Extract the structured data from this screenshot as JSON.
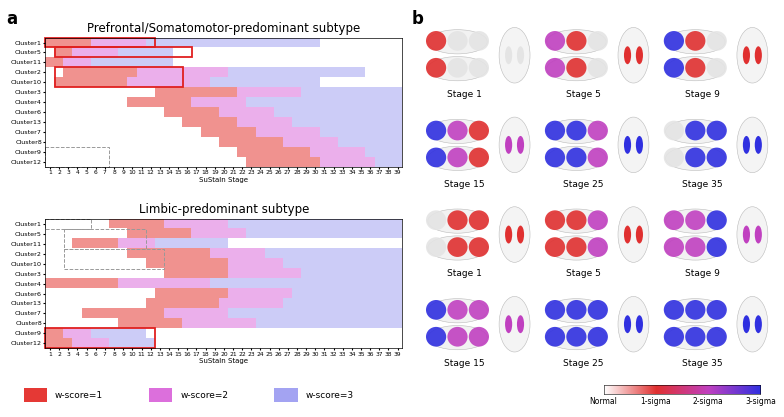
{
  "panel_labels": [
    "a",
    "b"
  ],
  "legend": [
    {
      "label": "w-score=1",
      "color": "#e53935"
    },
    {
      "label": "w-score=2",
      "color": "#dc6fdc"
    },
    {
      "label": "w-score=3",
      "color": "#a3a3f2"
    }
  ],
  "chart_data": [
    {
      "type": "heatmap",
      "title": "Prefrontal/Somatomotor-predominant subtype",
      "xlabel": "SuStaIn Stage",
      "rows": [
        "Cluster1",
        "Cluster5",
        "Cluster11",
        "Cluster2",
        "Cluster10",
        "Cluster3",
        "Cluster4",
        "Cluster6",
        "Cluster13",
        "Cluster7",
        "Cluster8",
        "Cluster9",
        "Cluster12"
      ],
      "xlim": [
        0.5,
        39.5
      ],
      "xticks": [
        1,
        2,
        3,
        4,
        5,
        6,
        7,
        8,
        9,
        10,
        11,
        12,
        13,
        14,
        15,
        16,
        17,
        18,
        19,
        20,
        21,
        22,
        23,
        24,
        25,
        26,
        27,
        28,
        29,
        30,
        31,
        32,
        33,
        34,
        35,
        36,
        37,
        38,
        39
      ],
      "cells": [
        {
          "w1": [
            1,
            5
          ],
          "w2": [
            6,
            11
          ],
          "w3": [
            12,
            30
          ]
        },
        {
          "w1": [
            2,
            3
          ],
          "w2": [
            4,
            8
          ],
          "w3": [
            9,
            14
          ]
        },
        {
          "w1": [
            1,
            2
          ],
          "w2": [
            3,
            5
          ],
          "w3": [
            6,
            14
          ]
        },
        {
          "w1": [
            3,
            10
          ],
          "w2": [
            11,
            20
          ],
          "w3": [
            21,
            35
          ]
        },
        {
          "w1": [
            2,
            9
          ],
          "w2": [
            10,
            18
          ],
          "w3": [
            19,
            30
          ]
        },
        {
          "w1": [
            13,
            21
          ],
          "w2": [
            22,
            28
          ],
          "w3": [
            29,
            39
          ]
        },
        {
          "w1": [
            10,
            16
          ],
          "w2": [
            17,
            22
          ],
          "w3": [
            23,
            39
          ]
        },
        {
          "w1": [
            14,
            19
          ],
          "w2": [
            20,
            25
          ],
          "w3": [
            26,
            39
          ]
        },
        {
          "w1": [
            16,
            21
          ],
          "w2": [
            22,
            27
          ],
          "w3": [
            28,
            39
          ]
        },
        {
          "w1": [
            18,
            23
          ],
          "w2": [
            24,
            30
          ],
          "w3": [
            31,
            39
          ]
        },
        {
          "w1": [
            20,
            26
          ],
          "w2": [
            27,
            32
          ],
          "w3": [
            33,
            39
          ]
        },
        {
          "w1": [
            22,
            29
          ],
          "w2": [
            30,
            35
          ],
          "w3": [
            36,
            39
          ]
        },
        {
          "w1": [
            23,
            30
          ],
          "w2": [
            31,
            36
          ],
          "w3": [
            37,
            39
          ]
        }
      ],
      "boxes": [
        {
          "rows": [
            0,
            0
          ],
          "stages": [
            1,
            12
          ],
          "style": "solid"
        },
        {
          "rows": [
            1,
            1
          ],
          "stages": [
            2,
            16
          ],
          "style": "solid"
        },
        {
          "rows": [
            3,
            4
          ],
          "stages": [
            2,
            15
          ],
          "style": "solid"
        },
        {
          "rows": [
            11,
            12
          ],
          "stages": [
            1,
            7
          ],
          "style": "dashed"
        }
      ]
    },
    {
      "type": "heatmap",
      "title": "Limbic-predominant subtype",
      "xlabel": "SuStaIn Stage",
      "rows": [
        "Cluster1",
        "Cluster5",
        "Cluster11",
        "Cluster2",
        "Cluster10",
        "Cluster3",
        "Cluster4",
        "Cluster6",
        "Cluster13",
        "Cluster7",
        "Cluster8",
        "Cluster9",
        "Cluster12"
      ],
      "xlim": [
        0.5,
        39.5
      ],
      "xticks": [
        1,
        2,
        3,
        4,
        5,
        6,
        7,
        8,
        9,
        10,
        11,
        12,
        13,
        14,
        15,
        16,
        17,
        18,
        19,
        20,
        21,
        22,
        23,
        24,
        25,
        26,
        27,
        28,
        29,
        30,
        31,
        32,
        33,
        34,
        35,
        36,
        37,
        38,
        39
      ],
      "cells": [
        {
          "w1": [
            8,
            13
          ],
          "w2": [
            14,
            20
          ],
          "w3": [
            21,
            39
          ]
        },
        {
          "w1": [
            10,
            16
          ],
          "w2": [
            17,
            22
          ],
          "w3": [
            23,
            39
          ]
        },
        {
          "w1": [
            4,
            8
          ],
          "w2": [
            9,
            12
          ],
          "w3": [
            13,
            20
          ]
        },
        {
          "w1": [
            10,
            18
          ],
          "w2": [
            19,
            24
          ],
          "w3": [
            25,
            39
          ]
        },
        {
          "w1": [
            12,
            20
          ],
          "w2": [
            21,
            26
          ],
          "w3": [
            27,
            39
          ]
        },
        {
          "w1": [
            14,
            20
          ],
          "w2": [
            21,
            28
          ],
          "w3": [
            29,
            39
          ]
        },
        {
          "w1": [
            1,
            8
          ],
          "w2": [
            9,
            18
          ],
          "w3": [
            19,
            39
          ]
        },
        {
          "w1": [
            13,
            20
          ],
          "w2": [
            21,
            27
          ],
          "w3": [
            28,
            39
          ]
        },
        {
          "w1": [
            12,
            19
          ],
          "w2": [
            20,
            26
          ],
          "w3": [
            27,
            39
          ]
        },
        {
          "w1": [
            5,
            13
          ],
          "w2": [
            14,
            20
          ],
          "w3": [
            21,
            39
          ]
        },
        {
          "w1": [
            9,
            15
          ],
          "w2": [
            16,
            23
          ],
          "w3": [
            24,
            39
          ]
        },
        {
          "w1": [
            1,
            2
          ],
          "w2": [
            3,
            5
          ],
          "w3": [
            6,
            11
          ]
        },
        {
          "w1": [
            1,
            3
          ],
          "w2": [
            4,
            7
          ],
          "w3": [
            8,
            12
          ]
        }
      ],
      "boxes": [
        {
          "rows": [
            11,
            12
          ],
          "stages": [
            1,
            12
          ],
          "style": "solid"
        },
        {
          "rows": [
            0,
            0
          ],
          "stages": [
            1,
            5
          ],
          "style": "dashed"
        },
        {
          "rows": [
            1,
            2
          ],
          "stages": [
            3,
            11
          ],
          "style": "dashed"
        },
        {
          "rows": [
            3,
            4
          ],
          "stages": [
            3,
            13
          ],
          "style": "dashed"
        }
      ]
    }
  ],
  "brain": {
    "stages": [
      1,
      5,
      9,
      15,
      25,
      35
    ],
    "stage_labels": [
      "Stage 1",
      "Stage 5",
      "Stage 9",
      "Stage 15",
      "Stage 25",
      "Stage 35"
    ],
    "colorbar": {
      "range": [
        0,
        3
      ],
      "ticks": [
        {
          "value": 0,
          "label": "Normal"
        },
        {
          "value": 1,
          "label": "1-sigma"
        },
        {
          "value": 2,
          "label": "2-sigma"
        },
        {
          "value": 3,
          "label": "3-sigma"
        }
      ],
      "colors": [
        "#ffffff",
        "#e03030",
        "#c040c0",
        "#3030e0"
      ]
    }
  }
}
